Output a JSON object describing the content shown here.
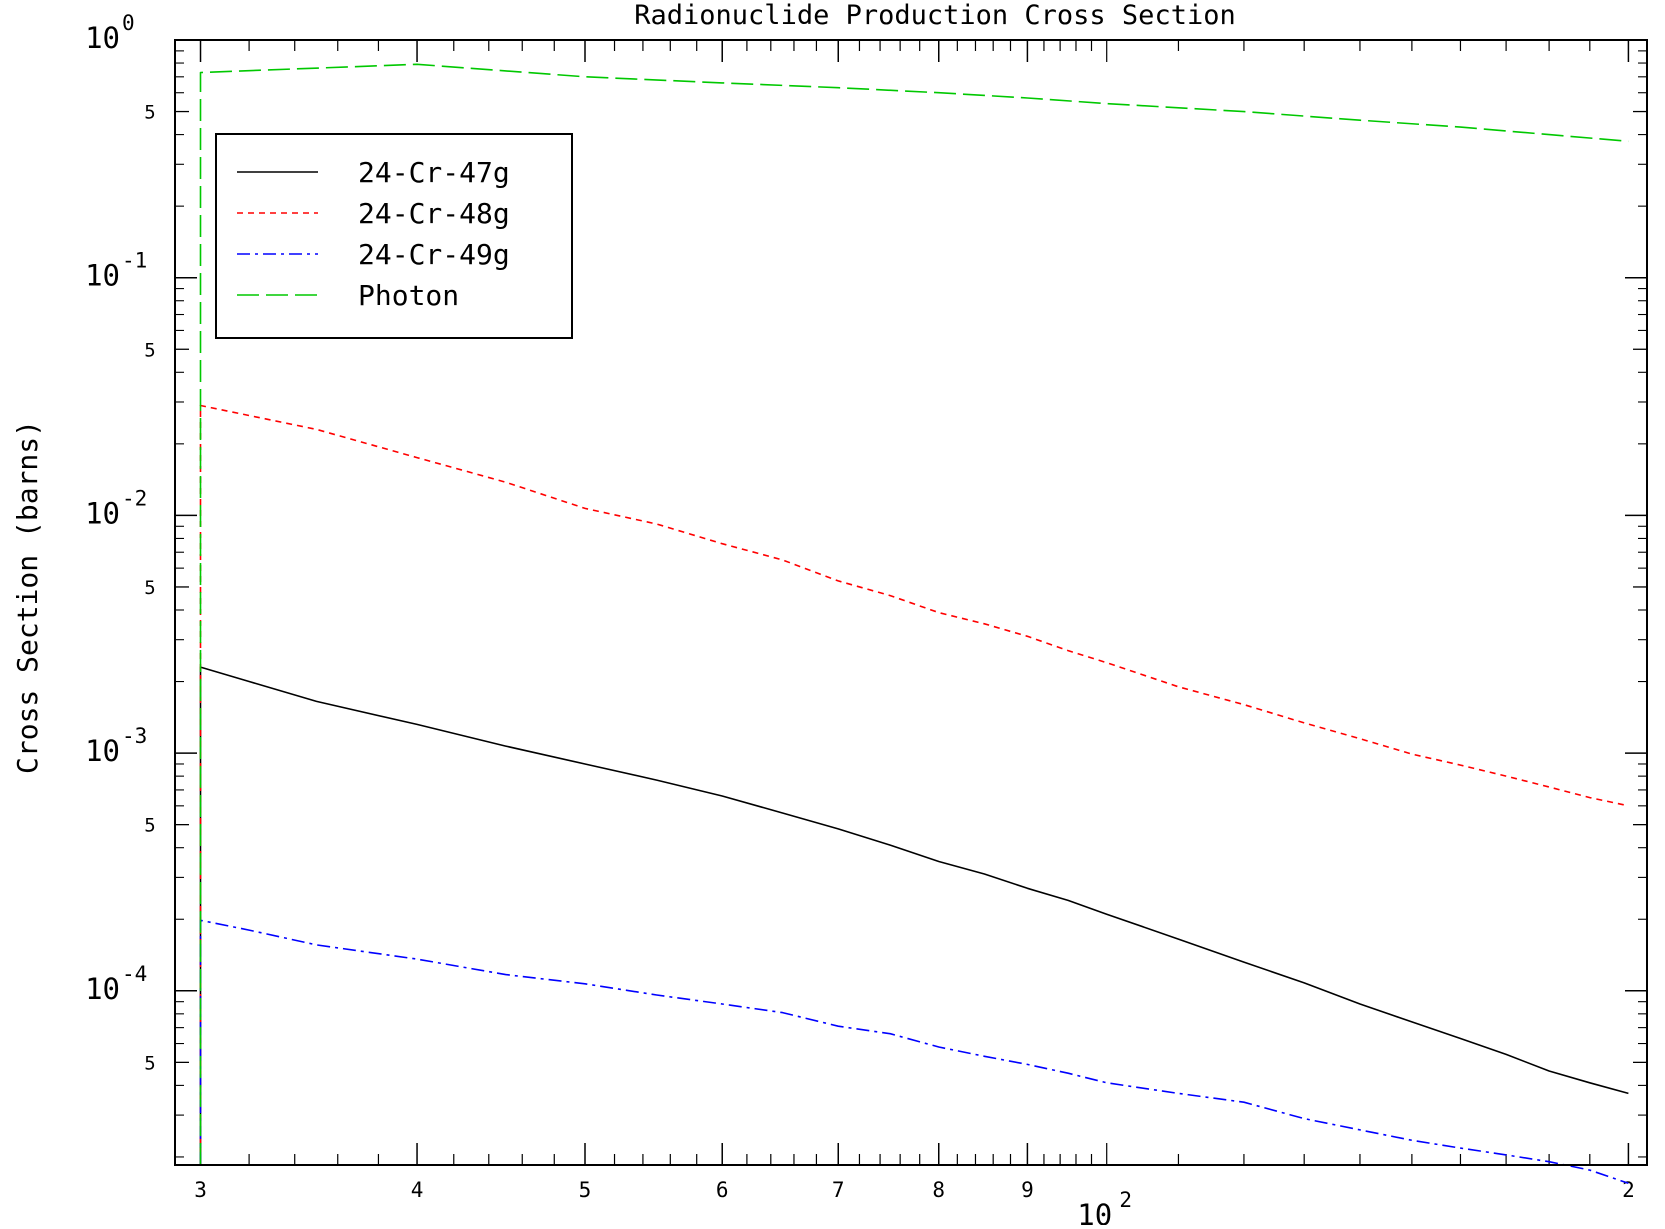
{
  "chart_data": {
    "type": "line",
    "title": "Radionuclide Production Cross Section",
    "ylabel": "Cross Section (barns)",
    "xlabel": "",
    "x_scale": "log",
    "y_scale": "log",
    "xlim": [
      29,
      205
    ],
    "ylim": [
      1.85e-05,
      1.0
    ],
    "grid": false,
    "legend_position": "top-left",
    "x_ticks": [
      {
        "value": 30,
        "label": "3"
      },
      {
        "value": 40,
        "label": "4"
      },
      {
        "value": 50,
        "label": "5"
      },
      {
        "value": 60,
        "label": "6"
      },
      {
        "value": 70,
        "label": "7"
      },
      {
        "value": 80,
        "label": "8"
      },
      {
        "value": 90,
        "label": "9"
      },
      {
        "value": 200,
        "label": "2"
      }
    ],
    "x_decade_label": {
      "base": "10",
      "exp": "2"
    },
    "x_minor_ticks": [
      32,
      34,
      36,
      38,
      42,
      44,
      46,
      48,
      52,
      54,
      56,
      58,
      62,
      64,
      66,
      68,
      72,
      74,
      76,
      78,
      82,
      84,
      86,
      88,
      92,
      94,
      96,
      98,
      100,
      110,
      120,
      130,
      140,
      150,
      160,
      170,
      180,
      190
    ],
    "y_decade_ticks": [
      {
        "value": 1,
        "base": "10",
        "exp": "0"
      },
      {
        "value": 0.1,
        "base": "10",
        "exp": "-1"
      },
      {
        "value": 0.01,
        "base": "10",
        "exp": "-2"
      },
      {
        "value": 0.001,
        "base": "10",
        "exp": "-3"
      },
      {
        "value": 0.0001,
        "base": "10",
        "exp": "-4"
      }
    ],
    "y_five_ticks": [
      {
        "value": 0.5,
        "label": "5"
      },
      {
        "value": 0.05,
        "label": "5"
      },
      {
        "value": 0.005,
        "label": "5"
      },
      {
        "value": 0.0005,
        "label": "5"
      },
      {
        "value": 5e-05,
        "label": "5"
      }
    ],
    "series": [
      {
        "name": "24-Cr-47g",
        "color": "#000000",
        "dash": "solid",
        "x": [
          30,
          30,
          32,
          35,
          40,
          45,
          50,
          55,
          60,
          65,
          70,
          75,
          80,
          85,
          90,
          95,
          100,
          110,
          120,
          130,
          140,
          150,
          160,
          170,
          180,
          190,
          200
        ],
        "y": [
          1.85e-05,
          0.0023,
          0.002,
          0.00165,
          0.00132,
          0.00107,
          0.0009,
          0.00077,
          0.00066,
          0.00056,
          0.00048,
          0.00041,
          0.00035,
          0.00031,
          0.00027,
          0.00024,
          0.00021,
          0.000165,
          0.000132,
          0.000108,
          8.8e-05,
          7.4e-05,
          6.3e-05,
          5.4e-05,
          4.6e-05,
          4.1e-05,
          3.7e-05
        ]
      },
      {
        "name": "24-Cr-48g",
        "color": "#ff0000",
        "dash": "short-dash",
        "x": [
          30,
          30,
          35,
          40,
          45,
          50,
          55,
          60,
          65,
          70,
          75,
          80,
          85,
          90,
          95,
          100,
          110,
          120,
          130,
          140,
          150,
          160,
          170,
          180,
          190,
          200
        ],
        "y": [
          1.85e-05,
          0.029,
          0.023,
          0.0175,
          0.0138,
          0.0107,
          0.0092,
          0.0076,
          0.0065,
          0.0053,
          0.0046,
          0.0039,
          0.0035,
          0.0031,
          0.0027,
          0.0024,
          0.0019,
          0.0016,
          0.00134,
          0.00115,
          0.00099,
          0.00089,
          0.0008,
          0.00072,
          0.00065,
          0.0006
        ]
      },
      {
        "name": "24-Cr-49g",
        "color": "#0000ff",
        "dash": "dash-dot",
        "x": [
          30,
          30,
          32,
          35,
          40,
          45,
          50,
          55,
          60,
          65,
          70,
          75,
          80,
          85,
          90,
          95,
          100,
          110,
          120,
          130,
          140,
          150,
          160,
          170,
          180,
          190,
          200
        ],
        "y": [
          1.85e-05,
          0.000198,
          0.00018,
          0.000156,
          0.000136,
          0.000117,
          0.000107,
          9.6e-05,
          8.8e-05,
          8.1e-05,
          7.1e-05,
          6.6e-05,
          5.8e-05,
          5.3e-05,
          4.9e-05,
          4.5e-05,
          4.1e-05,
          3.7e-05,
          3.4e-05,
          2.9e-05,
          2.6e-05,
          2.35e-05,
          2.18e-05,
          2.04e-05,
          1.91e-05,
          1.76e-05,
          1.55e-05
        ]
      },
      {
        "name": "Photon",
        "color": "#00c800",
        "dash": "long-dash",
        "x": [
          30,
          30,
          40,
          50,
          60,
          70,
          80,
          90,
          100,
          120,
          140,
          160,
          180,
          200
        ],
        "y": [
          1.85e-05,
          0.73,
          0.79,
          0.7,
          0.66,
          0.63,
          0.6,
          0.57,
          0.54,
          0.5,
          0.46,
          0.43,
          0.4,
          0.375
        ]
      }
    ]
  }
}
